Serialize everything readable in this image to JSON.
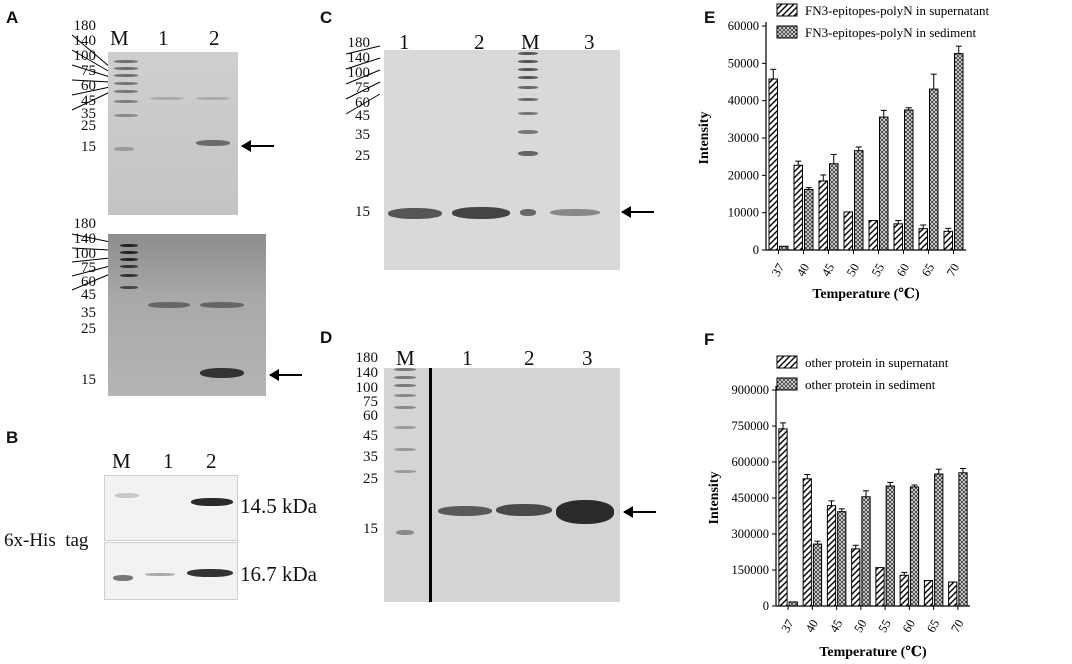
{
  "panels": {
    "A": {
      "label": "A",
      "lanes": [
        "M",
        "1",
        "2"
      ],
      "markers_top": [
        "180",
        "140",
        "100",
        "75",
        "60",
        "45",
        "35",
        "25",
        "15"
      ],
      "markers_bottom": [
        "180",
        "140",
        "100",
        "75",
        "60",
        "45",
        "35",
        "25",
        "15"
      ]
    },
    "B": {
      "label": "B",
      "lanes": [
        "M",
        "1",
        "2"
      ],
      "side_label": "6x-His  tag",
      "bands": [
        "14.5 kDa",
        "16.7 kDa"
      ]
    },
    "C": {
      "label": "C",
      "lanes": [
        "1",
        "2",
        "M",
        "3"
      ],
      "markers": [
        "180",
        "140",
        "100",
        "75",
        "60",
        "45",
        "35",
        "25",
        "15"
      ]
    },
    "D": {
      "label": "D",
      "lanes": [
        "M",
        "1",
        "2",
        "3"
      ],
      "markers": [
        "180",
        "140",
        "100",
        "75",
        "60",
        "45",
        "35",
        "25",
        "15"
      ]
    },
    "E": {
      "label": "E"
    },
    "F": {
      "label": "F"
    }
  },
  "chart_data": [
    {
      "panel": "E",
      "type": "bar",
      "categories": [
        "37",
        "40",
        "45",
        "50",
        "55",
        "60",
        "65",
        "70"
      ],
      "series": [
        {
          "name": "FN3-epitopes-polyN  in supernatant",
          "values": [
            45800,
            22700,
            18500,
            10200,
            7900,
            7000,
            5700,
            5000
          ],
          "errors": [
            2600,
            1100,
            1600,
            0,
            0,
            900,
            1000,
            800
          ],
          "pattern": "hatch"
        },
        {
          "name": "FN3-epitopes-polyN  in sediment",
          "values": [
            1000,
            16200,
            23100,
            26600,
            35600,
            37500,
            43100,
            52600
          ],
          "errors": [
            0,
            500,
            2500,
            1000,
            1800,
            600,
            4000,
            2000
          ],
          "pattern": "cross"
        }
      ],
      "xlabel": "Temperature (℃)",
      "ylabel": "Intensity",
      "yticks": [
        "0",
        "10000",
        "20000",
        "30000",
        "40000",
        "50000",
        "60000"
      ],
      "ylim": [
        0,
        60000
      ],
      "legend": "top"
    },
    {
      "panel": "F",
      "type": "bar",
      "categories": [
        "37",
        "40",
        "45",
        "50",
        "55",
        "60",
        "65",
        "70"
      ],
      "series": [
        {
          "name": "other protein in supernatant",
          "values": [
            738000,
            530000,
            418000,
            238000,
            160000,
            128000,
            106000,
            100000
          ],
          "errors": [
            25000,
            18000,
            20000,
            15000,
            0,
            12000,
            0,
            0
          ],
          "pattern": "hatch"
        },
        {
          "name": "other protein in sediment",
          "values": [
            17000,
            258000,
            393000,
            455000,
            500000,
            496000,
            550000,
            555000
          ],
          "errors": [
            0,
            12000,
            12000,
            25000,
            15000,
            8000,
            20000,
            18000
          ],
          "pattern": "cross"
        }
      ],
      "xlabel": "Temperature (℃)",
      "ylabel": "Intensity",
      "yticks": [
        "0",
        "150000",
        "300000",
        "450000",
        "600000",
        "750000",
        "900000"
      ],
      "ylim": [
        0,
        900000
      ],
      "legend": "top"
    }
  ]
}
